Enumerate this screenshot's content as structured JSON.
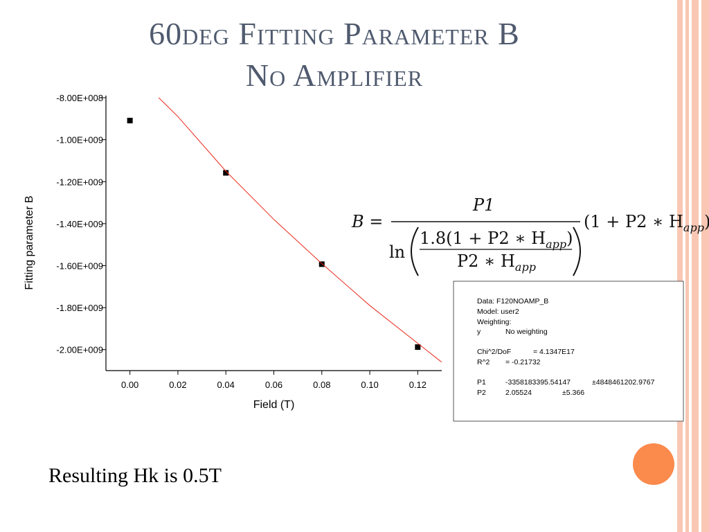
{
  "title": [
    "60deg Fitting Parameter B",
    "No Amplifier"
  ],
  "chart_data": {
    "type": "scatter",
    "xlabel": "Field (T)",
    "ylabel": "Fitting parameter B",
    "xlim": [
      -0.01,
      0.13
    ],
    "ylim": [
      -2100000000,
      -790000000
    ],
    "xticks": [
      {
        "value": 0,
        "label": "0.00"
      },
      {
        "value": 0.02,
        "label": "0.02"
      },
      {
        "value": 0.04,
        "label": "0.04"
      },
      {
        "value": 0.06,
        "label": "0.06"
      },
      {
        "value": 0.08,
        "label": "0.08"
      },
      {
        "value": 0.1,
        "label": "0.10"
      },
      {
        "value": 0.12,
        "label": "0.12"
      }
    ],
    "yticks": [
      {
        "value": -800000000,
        "label": "-8.00E+008"
      },
      {
        "value": -1000000000,
        "label": "-1.00E+009"
      },
      {
        "value": -1200000000,
        "label": "-1.20E+009"
      },
      {
        "value": -1400000000,
        "label": "-1.40E+009"
      },
      {
        "value": -1600000000,
        "label": "-1.60E+009"
      },
      {
        "value": -1800000000,
        "label": "-1.80E+009"
      },
      {
        "value": -2000000000,
        "label": "-2.00E+009"
      }
    ],
    "series": [
      {
        "type": "scatter",
        "color": "#000000",
        "x": [
          0,
          0.04,
          0.08,
          0.12
        ],
        "values": [
          -909000000,
          -1158000000,
          -1593000000,
          -1988000000
        ]
      },
      {
        "type": "line",
        "color": "#e8291c",
        "x": [
          0.012,
          0.02,
          0.04,
          0.06,
          0.08,
          0.1,
          0.12,
          0.13
        ],
        "values": [
          -800000000,
          -890000000,
          -1150000000,
          -1380000000,
          -1590000000,
          -1790000000,
          -1970000000,
          -2060000000
        ]
      }
    ]
  },
  "formula": {
    "lhs": "B =",
    "numerator": "P1",
    "log": "ln",
    "inner_numerator": [
      "1.8(1 + P2 ∗ H",
      "app",
      ")"
    ],
    "inner_denominator": [
      "P2 ∗ H",
      "app"
    ],
    "factor": [
      "(1 + P2 ∗ H",
      "app",
      ")"
    ]
  },
  "fit_report": [
    [
      "Data: F120NOAMP_B"
    ],
    [
      "Model: user2"
    ],
    [
      "Weighting:"
    ],
    [
      "y",
      "No weighting"
    ],
    [
      "Chi^2/DoF",
      "= 4.1347E17"
    ],
    [
      "R^2",
      "=  -0.21732"
    ],
    [
      "P1",
      "-3358183395.54147",
      "±4848461202.9767"
    ],
    [
      "P2",
      "2.05524",
      "±5.366"
    ]
  ],
  "caption": "Resulting Hk is 0.5T"
}
